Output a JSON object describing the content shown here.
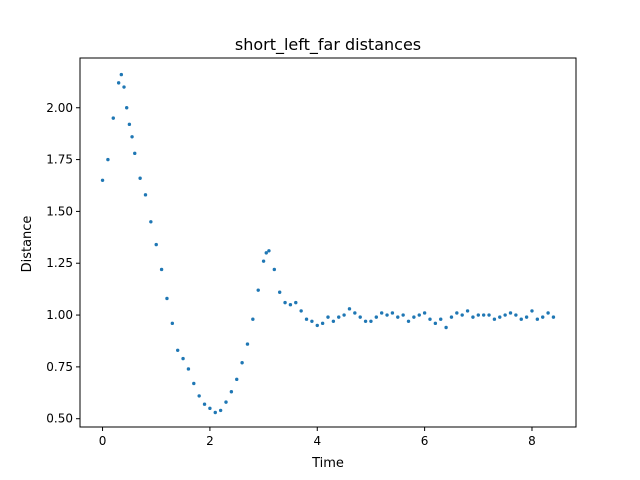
{
  "chart_data": {
    "type": "scatter",
    "title": "short_left_far distances",
    "xlabel": "Time",
    "ylabel": "Distance",
    "xlim": [
      -0.42,
      8.82
    ],
    "ylim": [
      0.46,
      2.24
    ],
    "xticks": [
      0,
      2,
      4,
      6,
      8
    ],
    "xtick_labels": [
      "0",
      "2",
      "4",
      "6",
      "8"
    ],
    "yticks": [
      0.5,
      0.75,
      1.0,
      1.25,
      1.5,
      1.75,
      2.0
    ],
    "ytick_labels": [
      "0.50",
      "0.75",
      "1.00",
      "1.25",
      "1.50",
      "1.75",
      "2.00"
    ],
    "grid": false,
    "marker_color": "#1f77b4",
    "series": [
      {
        "x": [
          0.0,
          0.1,
          0.2,
          0.3,
          0.35,
          0.4,
          0.45,
          0.5,
          0.55,
          0.6,
          0.7,
          0.8,
          0.9,
          1.0,
          1.1,
          1.2,
          1.3,
          1.4,
          1.5,
          1.6,
          1.7,
          1.8,
          1.9,
          2.0,
          2.1,
          2.2,
          2.3,
          2.4,
          2.5,
          2.6,
          2.7,
          2.8,
          2.9,
          3.0,
          3.05,
          3.1,
          3.2,
          3.3,
          3.4,
          3.5,
          3.6,
          3.7,
          3.8,
          3.9,
          4.0,
          4.1,
          4.2,
          4.3,
          4.4,
          4.5,
          4.6,
          4.7,
          4.8,
          4.9,
          5.0,
          5.1,
          5.2,
          5.3,
          5.4,
          5.5,
          5.6,
          5.7,
          5.8,
          5.9,
          6.0,
          6.1,
          6.2,
          6.3,
          6.4,
          6.5,
          6.6,
          6.7,
          6.8,
          6.9,
          7.0,
          7.1,
          7.2,
          7.3,
          7.4,
          7.5,
          7.6,
          7.7,
          7.8,
          7.9,
          8.0,
          8.1,
          8.2,
          8.3,
          8.4
        ],
        "y": [
          1.65,
          1.75,
          1.95,
          2.12,
          2.16,
          2.1,
          2.0,
          1.92,
          1.86,
          1.78,
          1.66,
          1.58,
          1.45,
          1.34,
          1.22,
          1.08,
          0.96,
          0.83,
          0.79,
          0.74,
          0.67,
          0.61,
          0.57,
          0.55,
          0.53,
          0.54,
          0.58,
          0.63,
          0.69,
          0.77,
          0.86,
          0.98,
          1.12,
          1.26,
          1.3,
          1.31,
          1.22,
          1.11,
          1.06,
          1.05,
          1.06,
          1.02,
          0.98,
          0.97,
          0.95,
          0.96,
          0.99,
          0.97,
          0.99,
          1.0,
          1.03,
          1.01,
          0.99,
          0.97,
          0.97,
          0.99,
          1.01,
          1.0,
          1.01,
          0.99,
          1.0,
          0.97,
          0.99,
          1.0,
          1.01,
          0.98,
          0.96,
          0.98,
          0.94,
          0.99,
          1.01,
          1.0,
          1.02,
          0.99,
          1.0,
          1.0,
          1.0,
          0.98,
          0.99,
          1.0,
          1.01,
          1.0,
          0.98,
          0.99,
          1.02,
          0.98,
          0.99,
          1.01,
          0.99
        ]
      }
    ]
  }
}
